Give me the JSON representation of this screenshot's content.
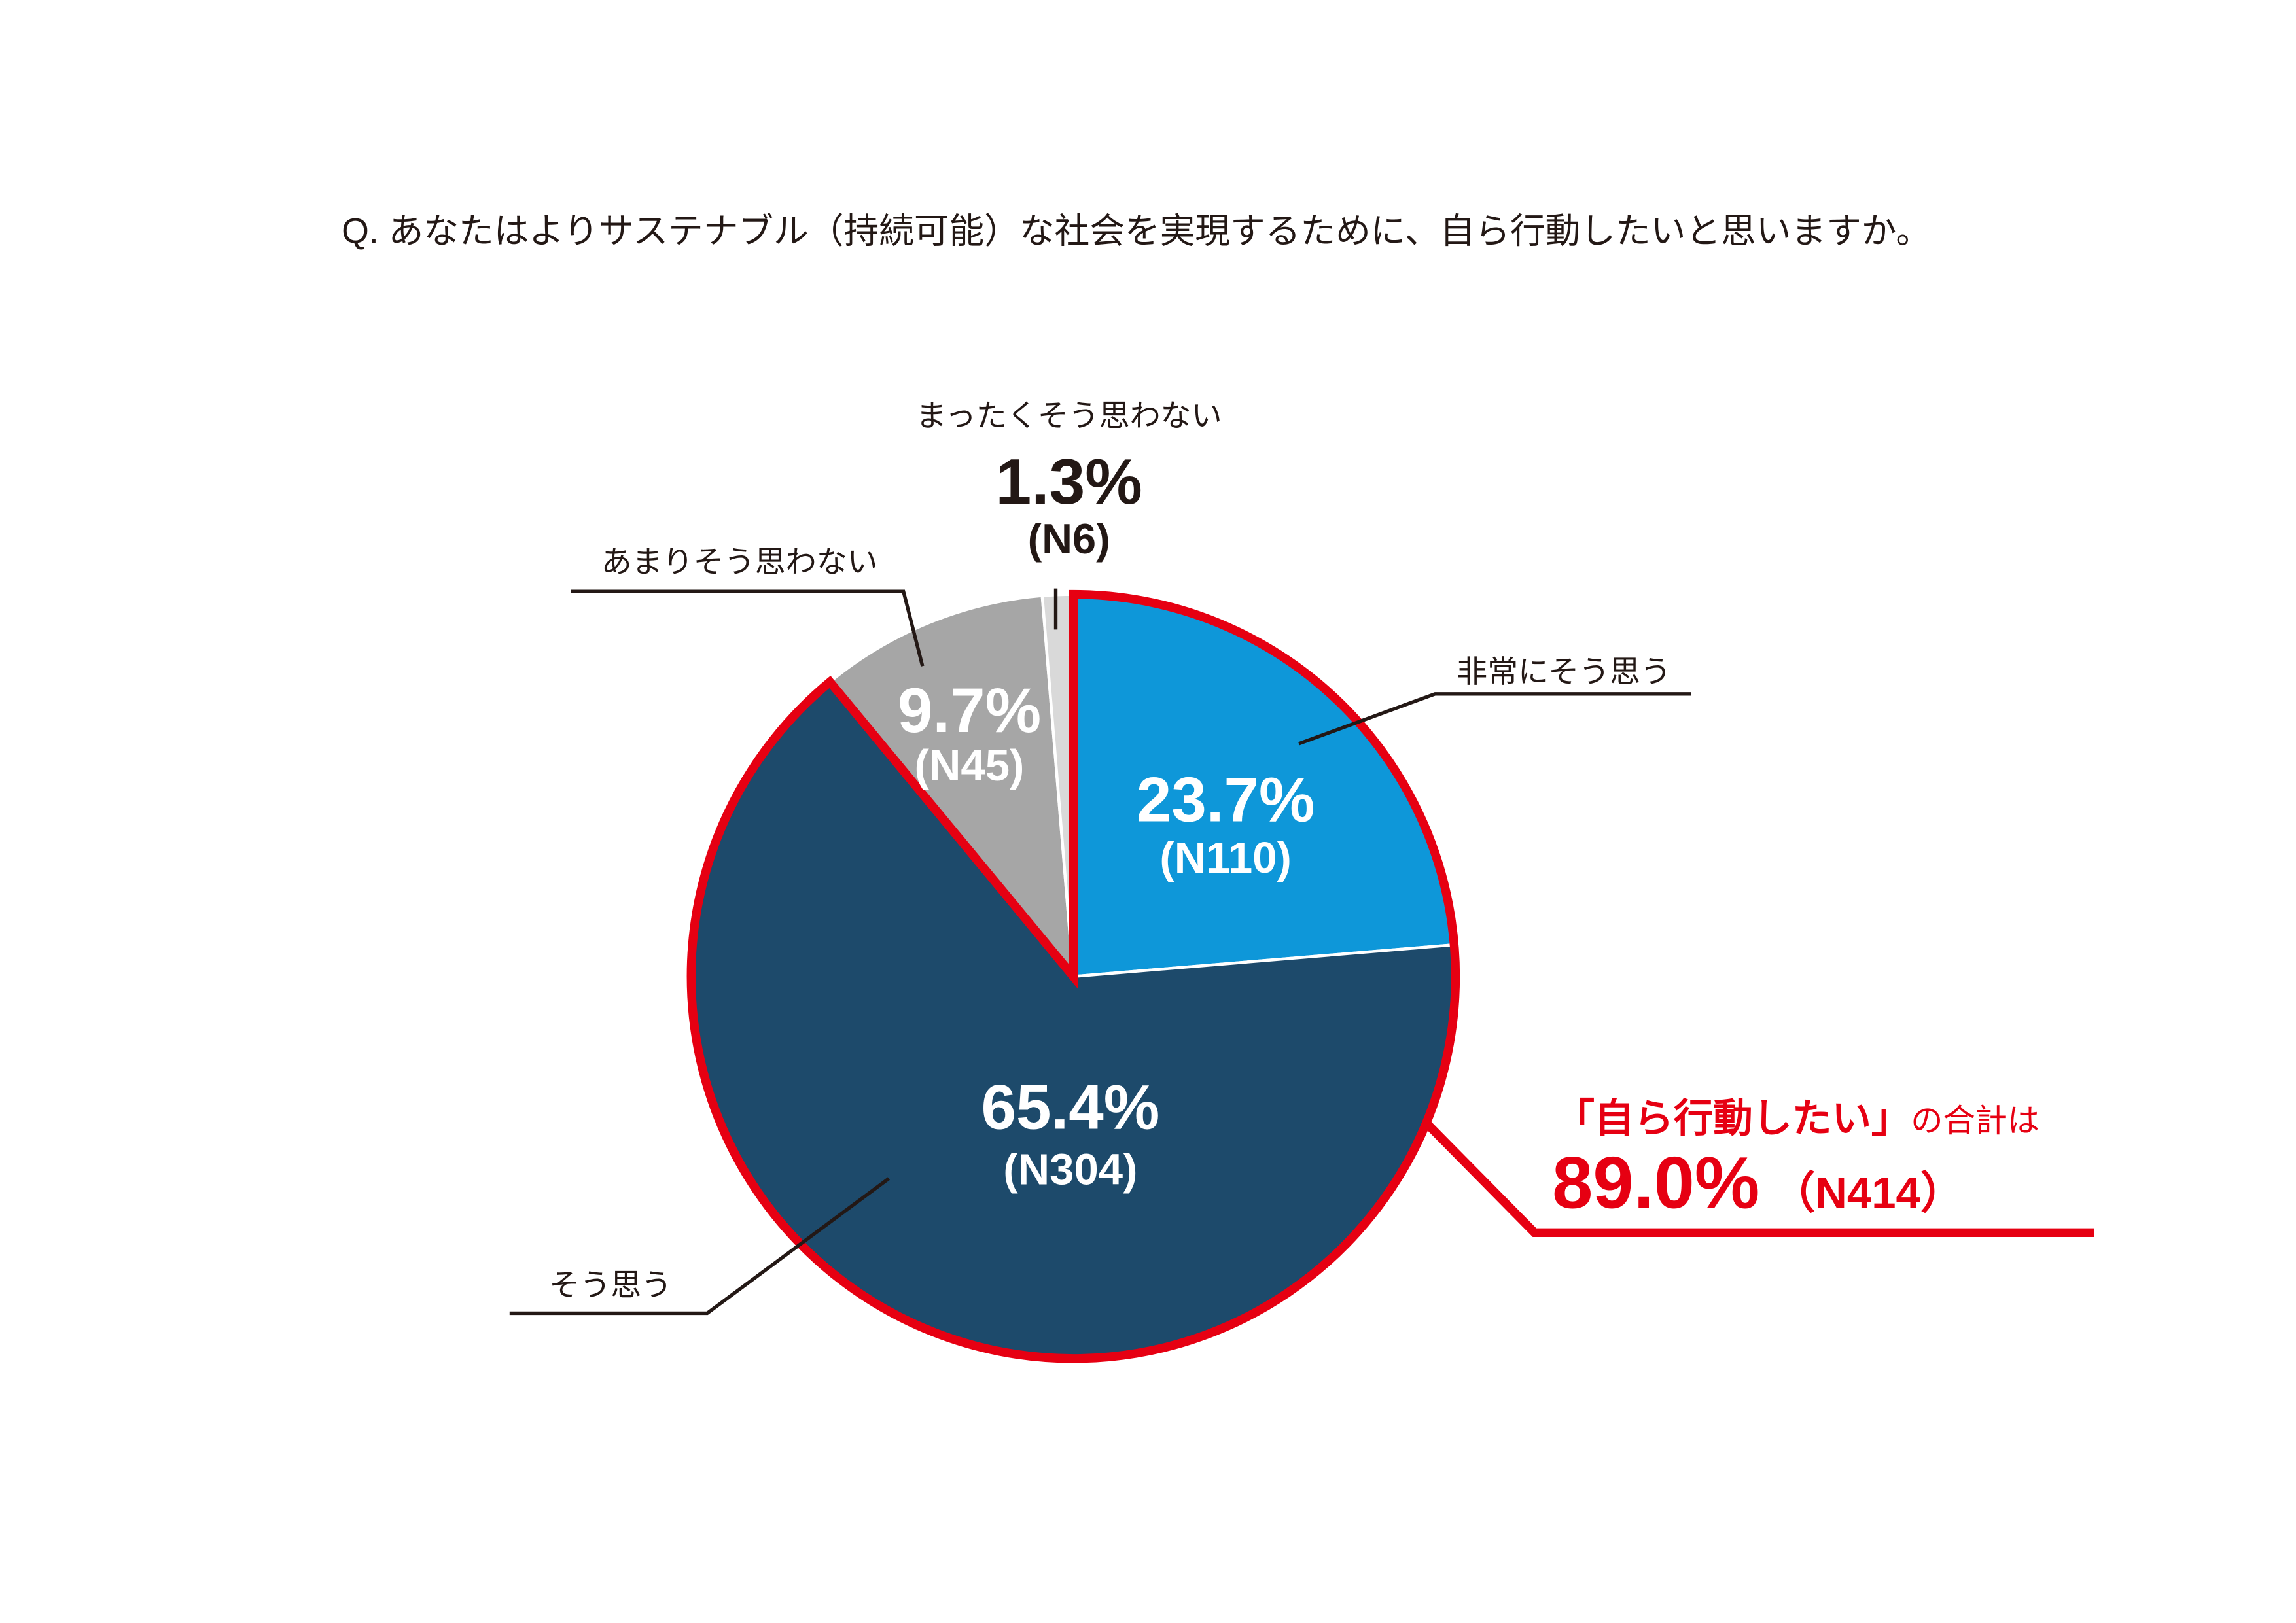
{
  "chart_data": {
    "type": "pie",
    "title": "Q. あなたはよりサステナブル（持続可能）な社会を実現するために、自ら行動したいと思いますか。",
    "slices": [
      {
        "label": "非常にそう思う",
        "percent": 23.7,
        "value_label": "23.7%",
        "count": 110,
        "n_label": "(N110)",
        "color": "#0e97d9"
      },
      {
        "label": "そう思う",
        "percent": 65.4,
        "value_label": "65.4%",
        "count": 304,
        "n_label": "(N304)",
        "color": "#1d4a6b"
      },
      {
        "label": "あまりそう思わない",
        "percent": 9.7,
        "value_label": "9.7%",
        "count": 45,
        "n_label": "(N45)",
        "color": "#a6a6a6"
      },
      {
        "label": "まったくそう思わない",
        "percent": 1.3,
        "value_label": "1.3%",
        "count": 6,
        "n_label": "(N6)",
        "color": "#d9d9d9"
      }
    ],
    "highlight": {
      "label": "「自ら行動したい」",
      "suffix": "の合計は",
      "percent": 89.0,
      "value_label": "89.0%",
      "count": 414,
      "n_label": "（N414）",
      "slice_indices": [
        0,
        1
      ],
      "color": "#e60012"
    }
  }
}
